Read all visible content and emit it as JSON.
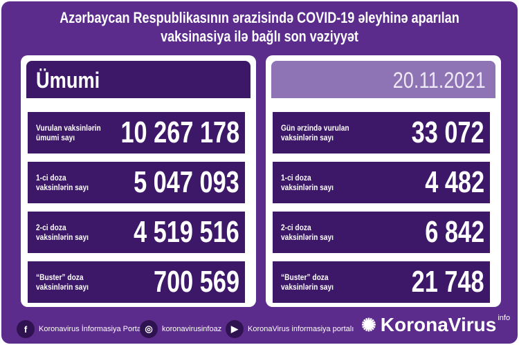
{
  "title": {
    "line1": "Azərbaycan Respublikasının ərazisində COVID-19 əleyhinə aparılan",
    "line2": "vaksinasiya ilə bağlı son vəziyyət"
  },
  "left": {
    "header": "Ümumi",
    "rows": [
      {
        "label1": "Vurulan vaksinlərin",
        "label2": "ümumi sayı",
        "value": "10 267 178"
      },
      {
        "label1": "1-ci doza",
        "label2": "vaksinlərin sayı",
        "value": "5 047 093"
      },
      {
        "label1": "2-ci doza",
        "label2": "vaksinlərin sayı",
        "value": "4 519 516"
      },
      {
        "label1": "“Buster” doza",
        "label2": "vaksinlərin sayı",
        "value": "700 569"
      }
    ]
  },
  "right": {
    "header": "20.11.2021",
    "rows": [
      {
        "label1": "Gün ərzində vurulan",
        "label2": "vaksinlərin sayı",
        "value": "33 072"
      },
      {
        "label1": "1-ci doza",
        "label2": "vaksinlərin sayı",
        "value": "4 482"
      },
      {
        "label1": "2-ci doza",
        "label2": "vaksinlərin sayı",
        "value": "6 842"
      },
      {
        "label1": "“Buster” doza",
        "label2": "vaksinlərin sayı",
        "value": "21 748"
      }
    ]
  },
  "footer": {
    "facebook": "Koronavirus İnformasiya Portalı",
    "instagram": "koronavirusinfoaz",
    "youtube": "KoronaVirus informasiya portalı",
    "logo": "KoronaVirus",
    "logo_sup": "info"
  },
  "colors": {
    "background": "#5b2c8c",
    "row": "#3d1868",
    "date_header": "#8e74b4"
  }
}
